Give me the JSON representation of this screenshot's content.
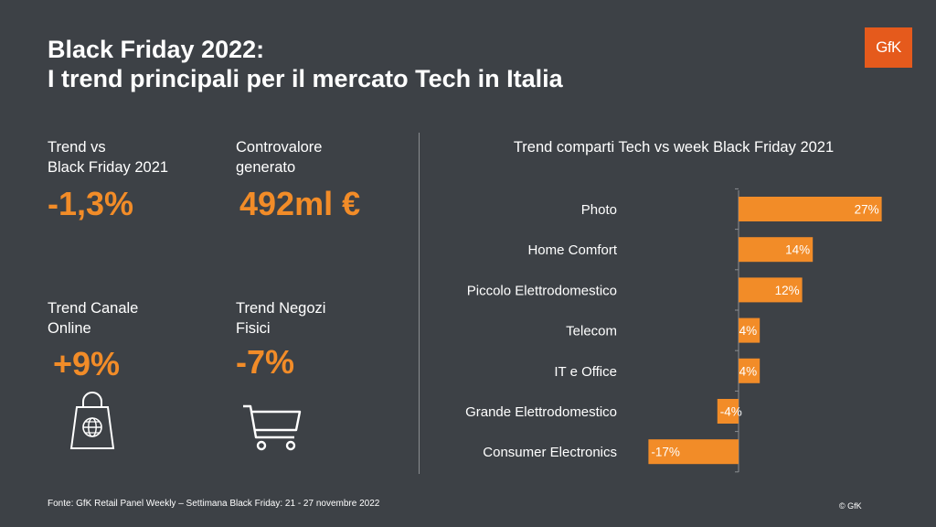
{
  "header": {
    "title_line1": "Black Friday 2022:",
    "title_line2": "I trend principali per il mercato Tech in Italia",
    "logo_text": "GfK"
  },
  "kpis": {
    "trend_vs_bf2021": {
      "label_line1": "Trend vs",
      "label_line2": "Black Friday 2021",
      "value": "-1,3%"
    },
    "controvalore": {
      "label_line1": "Controvalore",
      "label_line2": "generato",
      "value": "492ml €"
    },
    "trend_online": {
      "label_line1": "Trend Canale",
      "label_line2": "Online",
      "value": "+9%"
    },
    "trend_negozi": {
      "label_line1": "Trend Negozi",
      "label_line2": "Fisici",
      "value": "-7%"
    }
  },
  "icons": {
    "online": "shopping-bag-globe-icon",
    "negozi": "shopping-cart-icon"
  },
  "colors": {
    "background": "#3d4146",
    "accent": "#f28c28",
    "logo": "#e55a1c"
  },
  "chart_data": {
    "type": "bar",
    "orientation": "horizontal",
    "title": "Trend comparti Tech vs week Black Friday 2021",
    "categories": [
      "Photo",
      "Home Comfort",
      "Piccolo Elettrodomestico",
      "Telecom",
      "IT e Office",
      "Grande Elettrodomestico",
      "Consumer Electronics"
    ],
    "values": [
      27,
      14,
      12,
      4,
      4,
      -4,
      -17
    ],
    "data_labels": [
      "27%",
      "14%",
      "12%",
      "4%",
      "4%",
      "-4%",
      "-17%"
    ],
    "unit": "%",
    "grid": false
  },
  "footer": {
    "source": "Fonte: GfK Retail Panel Weekly – Settimana Black Friday:  21 - 27 novembre 2022",
    "copyright": "© GfK"
  }
}
